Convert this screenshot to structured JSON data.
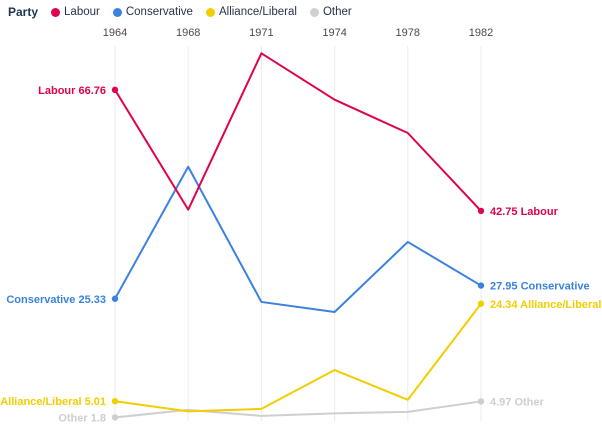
{
  "legend": {
    "title": "Party",
    "items": [
      {
        "label": "Labour",
        "color": "#e0024d"
      },
      {
        "label": "Conservative",
        "color": "#3b82e0"
      },
      {
        "label": "Alliance/Liberal",
        "color": "#f2cd00"
      },
      {
        "label": "Other",
        "color": "#cfcfcf"
      }
    ]
  },
  "chart_data": {
    "type": "line",
    "title": "",
    "xlabel": "",
    "ylabel": "",
    "categories": [
      "1964",
      "1968",
      "1971",
      "1974",
      "1978",
      "1982"
    ],
    "series": [
      {
        "name": "Labour",
        "color": "#e0024d",
        "values": [
          66.76,
          43.0,
          74.0,
          64.8,
          58.2,
          42.75
        ],
        "start_label": "Labour 66.76",
        "end_label": "42.75 Labour"
      },
      {
        "name": "Conservative",
        "color": "#3b82e0",
        "values": [
          25.33,
          51.5,
          24.7,
          22.7,
          36.6,
          27.95
        ],
        "start_label": "Conservative 25.33",
        "end_label": "27.95 Conservative"
      },
      {
        "name": "Alliance/Liberal",
        "color": "#f2cd00",
        "values": [
          5.01,
          3.0,
          3.5,
          11.2,
          5.3,
          24.34
        ],
        "start_label": "Alliance/Liberal 5.01",
        "end_label": "24.34 Alliance/Liberal"
      },
      {
        "name": "Other",
        "color": "#cfcfcf",
        "values": [
          1.8,
          3.3,
          2.1,
          2.6,
          2.9,
          4.97
        ],
        "start_label": "Other 1.8",
        "end_label": "4.97 Other"
      }
    ],
    "ylim": [
      0,
      80
    ],
    "grid": "vertical-only",
    "legend_position": "top-left",
    "markers": "endpoints-only"
  }
}
